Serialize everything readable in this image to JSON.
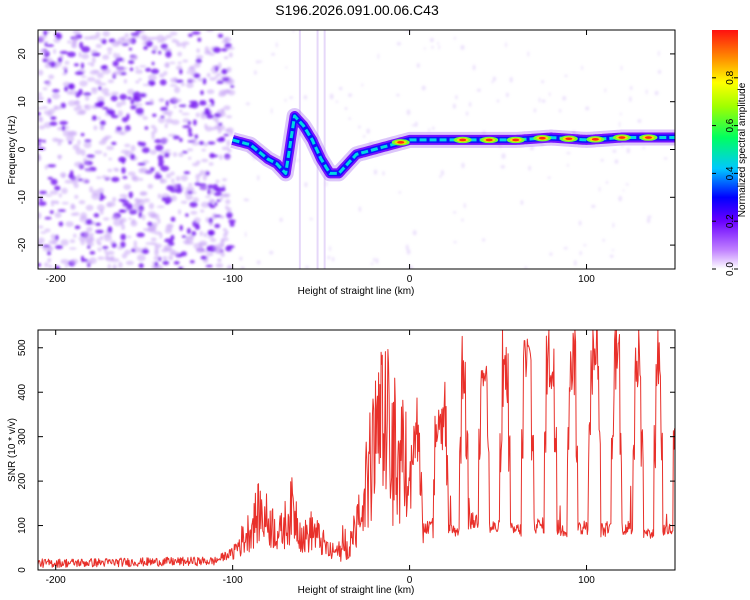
{
  "title": "S196.2026.091.00.06.C43",
  "chart_data": [
    {
      "type": "heatmap",
      "name": "spectrogram",
      "xlabel": "Height of straight line (km)",
      "ylabel": "Frequency (Hz)",
      "xlim": [
        -210,
        150
      ],
      "ylim": [
        -25,
        25
      ],
      "xticks": [
        -200,
        -100,
        0,
        100
      ],
      "yticks": [
        -20,
        -10,
        0,
        10,
        20
      ],
      "colorbar": {
        "label": "Normalized spectral amplitude",
        "range": [
          0,
          1
        ],
        "ticks": [
          0.0,
          0.2,
          0.4,
          0.6,
          0.8
        ],
        "tick_labels": [
          "0.0",
          "0.2",
          "0.4",
          "0.6",
          "0.8"
        ]
      },
      "ridge": {
        "x": [
          -100,
          -90,
          -80,
          -75,
          -70,
          -65,
          -60,
          -55,
          -50,
          -45,
          -40,
          -35,
          -30,
          -20,
          -10,
          0,
          20,
          40,
          60,
          80,
          100,
          120,
          150
        ],
        "y": [
          2,
          1,
          -2,
          -3,
          -5,
          7,
          5,
          2,
          -2,
          -5,
          -5,
          -3,
          -1,
          0,
          1,
          2,
          2,
          2,
          2,
          2.5,
          2,
          2.5,
          2.5
        ]
      },
      "hotspots_x": [
        -5,
        30,
        45,
        60,
        75,
        90,
        105,
        120,
        135
      ]
    },
    {
      "type": "line",
      "name": "snr",
      "xlabel": "Height of straight line (km)",
      "ylabel": "SNR (10 * v/v)",
      "xlim": [
        -210,
        150
      ],
      "ylim": [
        0,
        540
      ],
      "xticks": [
        -200,
        -100,
        0,
        100
      ],
      "yticks": [
        0,
        100,
        200,
        300,
        400,
        500
      ],
      "color": "#e8302a",
      "envelope": {
        "x": [
          -210,
          -110,
          -100,
          -92,
          -85,
          -80,
          -73,
          -66,
          -60,
          -55,
          -45,
          -35,
          -28,
          -20,
          -15,
          -10,
          -5,
          0,
          10,
          20,
          25,
          30,
          40,
          50,
          55,
          60,
          70,
          80,
          90,
          100,
          110,
          120,
          130,
          140,
          150
        ],
        "y": [
          15,
          20,
          40,
          80,
          130,
          110,
          80,
          140,
          70,
          90,
          40,
          45,
          120,
          280,
          350,
          300,
          250,
          290,
          270,
          330,
          420,
          460,
          480,
          440,
          430,
          470,
          460,
          470,
          470,
          480,
          470,
          480,
          470,
          480,
          470
        ]
      },
      "dips": [
        {
          "x": 10,
          "width": 3,
          "y": 100
        },
        {
          "x": 25,
          "width": 3,
          "y": 90
        },
        {
          "x": 36,
          "width": 3,
          "y": 110
        },
        {
          "x": 48,
          "width": 3,
          "y": 95
        },
        {
          "x": 60,
          "width": 3,
          "y": 90
        },
        {
          "x": 73,
          "width": 3,
          "y": 100
        },
        {
          "x": 86,
          "width": 3,
          "y": 90
        },
        {
          "x": 98,
          "width": 3,
          "y": 95
        },
        {
          "x": 111,
          "width": 3,
          "y": 90
        },
        {
          "x": 123,
          "width": 3,
          "y": 95
        },
        {
          "x": 135,
          "width": 3,
          "y": 80
        },
        {
          "x": 146,
          "width": 3,
          "y": 90
        }
      ]
    }
  ]
}
